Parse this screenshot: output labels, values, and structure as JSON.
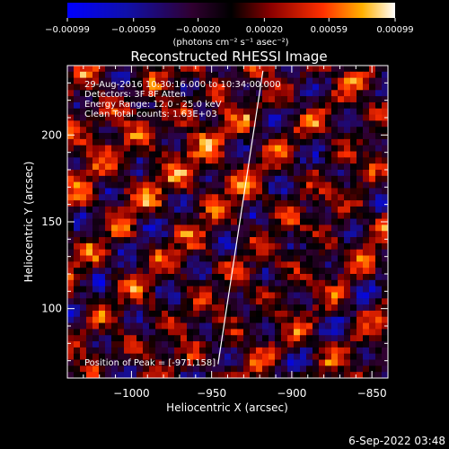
{
  "chart_data": {
    "type": "heatmap",
    "title": "Reconstructed RHESSI Image",
    "xlabel": "Heliocentric X (arcsec)",
    "ylabel": "Heliocentric Y (arcsec)",
    "xlim": [
      -1040,
      -840
    ],
    "ylim": [
      60,
      240
    ],
    "xticks": [
      -1000,
      -950,
      -900,
      -850
    ],
    "xtick_labels": [
      "−1000",
      "−950",
      "−900",
      "−850"
    ],
    "yticks": [
      100,
      150,
      200
    ],
    "ytick_labels": [
      "100",
      "150",
      "200"
    ],
    "colorbar": {
      "ticks": [
        -0.00099,
        -0.00059,
        -0.0002,
        0.0002,
        0.00059,
        0.00099
      ],
      "tick_labels": [
        "−0.00099",
        "−0.00059",
        "−0.00020",
        "0.00020",
        "0.00059",
        "0.00099"
      ],
      "unit_label": "(photons cm⁻² s⁻¹ asec⁻²)",
      "range": [
        -0.00099,
        0.00099
      ]
    },
    "annotations": [
      "29-Aug-2016 10:30:16.000 to 10:34:00.000",
      "Detectors: 3F 8F  Atten",
      "Energy Range: 12.0 - 25.0 keV",
      "Clean    Total counts: 1.63E+03"
    ],
    "peak_label": "Position of Peak = [-971,158]",
    "limb_line": {
      "x": [
        -946,
        -918
      ],
      "y": [
        68,
        237
      ]
    },
    "grid_cols": 51,
    "grid_rows": 51,
    "grid": false,
    "legend": "none"
  },
  "timestamp": "6-Sep-2022 03:48"
}
